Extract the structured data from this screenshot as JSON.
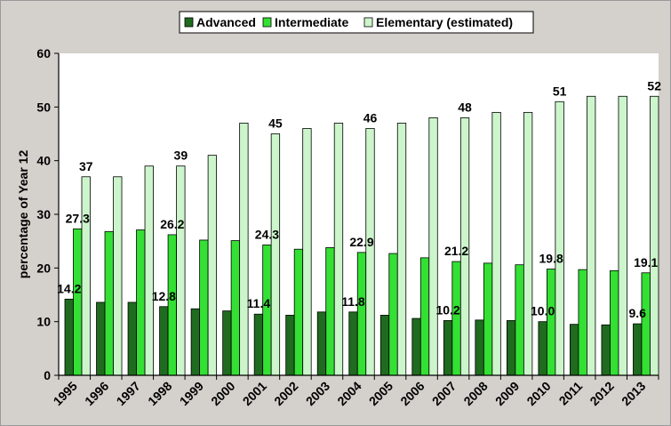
{
  "chart_data": {
    "type": "bar",
    "title": "",
    "xlabel": "",
    "ylabel": "percentage of Year 12",
    "ylim": [
      0,
      60
    ],
    "yticks": [
      0,
      10,
      20,
      30,
      40,
      50,
      60
    ],
    "grid": false,
    "legend_position": "top",
    "categories": [
      "1995",
      "1996",
      "1997",
      "1998",
      "1999",
      "2000",
      "2001",
      "2002",
      "2003",
      "2004",
      "2005",
      "2006",
      "2007",
      "2008",
      "2009",
      "2010",
      "2011",
      "2012",
      "2013"
    ],
    "series": [
      {
        "name": "Advanced",
        "color": "#1f6b1f",
        "values": [
          14.2,
          13.6,
          13.6,
          12.8,
          12.4,
          12.0,
          11.4,
          11.2,
          11.8,
          11.8,
          11.2,
          10.6,
          10.2,
          10.3,
          10.2,
          10.0,
          9.5,
          9.4,
          9.6
        ],
        "labels": {
          "0": "14.2",
          "3": "12.8",
          "6": "11.4",
          "9": "11.8",
          "12": "10.2",
          "15": "10.0",
          "18": "9.6"
        }
      },
      {
        "name": "Intermediate",
        "color": "#33e033",
        "values": [
          27.3,
          26.8,
          27.1,
          26.2,
          25.2,
          25.1,
          24.3,
          23.5,
          23.8,
          22.9,
          22.7,
          21.9,
          21.2,
          20.9,
          20.6,
          19.8,
          19.7,
          19.5,
          19.1
        ],
        "labels": {
          "0": "27.3",
          "3": "26.2",
          "6": "24.3",
          "9": "22.9",
          "12": "21.2",
          "15": "19.8",
          "18": "19.1"
        }
      },
      {
        "name": "Elementary (estimated)",
        "color": "#ccf5cc",
        "values": [
          37,
          37,
          39,
          39,
          41,
          47,
          45,
          46,
          47,
          46,
          47,
          48,
          48,
          49,
          49,
          51,
          52,
          52,
          52
        ],
        "labels": {
          "0": "37",
          "3": "39",
          "6": "45",
          "9": "46",
          "12": "48",
          "15": "51",
          "18": "52"
        }
      }
    ]
  }
}
